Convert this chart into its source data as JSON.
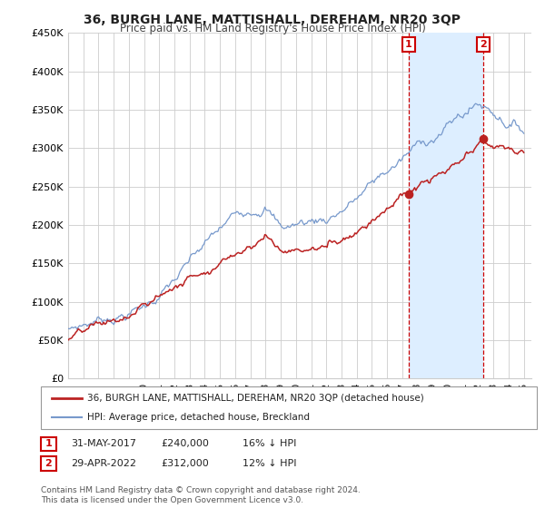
{
  "title": "36, BURGH LANE, MATTISHALL, DEREHAM, NR20 3QP",
  "subtitle": "Price paid vs. HM Land Registry's House Price Index (HPI)",
  "legend_line1": "36, BURGH LANE, MATTISHALL, DEREHAM, NR20 3QP (detached house)",
  "legend_line2": "HPI: Average price, detached house, Breckland",
  "annotation1_label": "1",
  "annotation1_date": "31-MAY-2017",
  "annotation1_price": "£240,000",
  "annotation1_hpi": "16% ↓ HPI",
  "annotation1_year": 2017.42,
  "annotation1_value": 240000,
  "annotation2_label": "2",
  "annotation2_date": "29-APR-2022",
  "annotation2_price": "£312,000",
  "annotation2_hpi": "12% ↓ HPI",
  "annotation2_year": 2022.33,
  "annotation2_value": 312000,
  "ylabel_ticks": [
    "£0",
    "£50K",
    "£100K",
    "£150K",
    "£200K",
    "£250K",
    "£300K",
    "£350K",
    "£400K",
    "£450K"
  ],
  "ytick_values": [
    0,
    50000,
    100000,
    150000,
    200000,
    250000,
    300000,
    350000,
    400000,
    450000
  ],
  "hpi_color": "#7799cc",
  "price_color": "#bb2222",
  "annotation_color": "#cc0000",
  "background_color": "#ffffff",
  "grid_color": "#cccccc",
  "shade_color": "#ddeeff",
  "footer": "Contains HM Land Registry data © Crown copyright and database right 2024.\nThis data is licensed under the Open Government Licence v3.0."
}
